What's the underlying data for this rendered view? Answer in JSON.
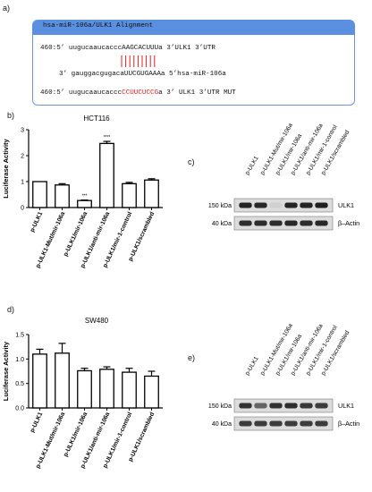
{
  "panel_a": {
    "letter": "a)",
    "title": "hsa-miR-106a/ULK1 Alignment",
    "line1": {
      "pre": "460:5’ uugucaaucacccAAGCACUUUa 3’ULK1 3’UTR"
    },
    "line2": {
      "pre": "3’ gauggacgugacaUUCGUGAAAa 5’hsa-miR-106a"
    },
    "line3": {
      "pre": "460:5’ uugucaaucaccc",
      "mut": "CCUUCUCCG",
      "post": "a 3’ ULK1 3’UTR MUT"
    }
  },
  "panel_labels": {
    "b": "b)",
    "c": "c)",
    "d": "d)",
    "e": "e)"
  },
  "blots": {
    "c_lanes": [
      "p-ULK1",
      "p-ULK1-Mut/mir-106a",
      "p-ULK1/mir-106a",
      "p-ULK1/anti-mir-106a",
      "p-ULK1/mir-1-control",
      "p-ULK1/scrambled"
    ],
    "e_lanes": [
      "p-ULK1",
      "p-ULK1-Mut/mir-106a",
      "p-ULK1/mir-106a",
      "p-ULK1/anti-mir-106a",
      "p-ULK1/mir-1-control",
      "p-ULK1/scrambled"
    ],
    "kda_150": "150 kDa",
    "kda_40": "40 kDa",
    "band_ulk1": "ULK1",
    "band_actin": "β–Actin"
  },
  "chart_data": [
    {
      "type": "bar",
      "title": "HCT116",
      "ylabel": "Luciferase Activity",
      "ylim": [
        0,
        3
      ],
      "yticks": [
        "0",
        "1",
        "2",
        "3"
      ],
      "categories": [
        "p-ULK1",
        "p-ULK1-Mut/mir-106a",
        "p-ULK1/mir-106a",
        "p-ULK1/anti-mir-106a",
        "p-ULK1/mir-1-control",
        "p-ULK1/scrambled"
      ],
      "values": [
        1.0,
        0.87,
        0.27,
        2.47,
        0.92,
        1.06
      ],
      "errors": [
        0.0,
        0.05,
        0.02,
        0.08,
        0.05,
        0.05
      ],
      "annotations": [
        "",
        "",
        "***",
        "****",
        "",
        ""
      ]
    },
    {
      "type": "bar",
      "title": "SW480",
      "ylabel": "Luciferase Activity",
      "ylim": [
        0,
        1.5
      ],
      "yticks": [
        "0.0",
        "0.5",
        "1.0",
        "1.5"
      ],
      "categories": [
        "p-ULK1",
        "p-ULK1-Mut/mir-106a",
        "p-ULK1/mir-106a",
        "p-ULK1/anti-mir-106a",
        "p-ULK1/mir-1-control",
        "p-ULK1/scrambled"
      ],
      "values": [
        1.1,
        1.12,
        0.76,
        0.79,
        0.73,
        0.65
      ],
      "errors": [
        0.1,
        0.2,
        0.05,
        0.05,
        0.08,
        0.1
      ],
      "annotations": [
        "",
        "",
        "",
        "",
        "",
        ""
      ]
    }
  ]
}
